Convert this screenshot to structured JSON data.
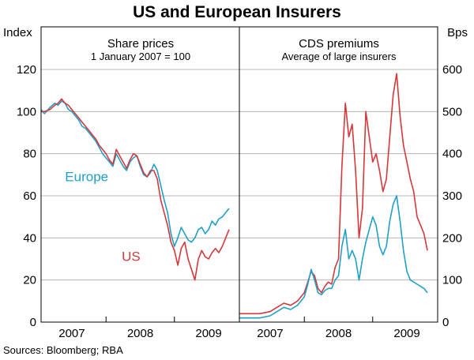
{
  "title": "US and European Insurers",
  "source": "Sources: Bloomberg; RBA",
  "colors": {
    "us": "#d6373a",
    "europe": "#1fa0c8",
    "grid": "#b5b5b5",
    "frame": "#000000"
  },
  "chart_data": [
    {
      "type": "line",
      "title": "Share prices",
      "subtitle": "1 January 2007 = 100",
      "ylabel": "Index",
      "ylim": [
        0,
        120
      ],
      "yticks": [
        0,
        20,
        40,
        60,
        80,
        100,
        120
      ],
      "xlim": [
        2006.55,
        2009.45
      ],
      "xticks": [
        {
          "label": "2007",
          "pos": 2007.0
        },
        {
          "label": "2008",
          "pos": 2008.0
        },
        {
          "label": "2009",
          "pos": 2009.0
        }
      ],
      "year_bounds": [
        2007.5,
        2008.5
      ],
      "annotations": [
        {
          "text": "Europe",
          "series": "Europe",
          "x": 2006.9,
          "y": 67
        },
        {
          "text": "US",
          "series": "US",
          "x": 2007.73,
          "y": 29
        }
      ],
      "series": [
        {
          "name": "Europe",
          "x": [
            2006.55,
            2006.6,
            2006.68,
            2006.75,
            2006.8,
            2006.85,
            2006.9,
            2006.95,
            2007.0,
            2007.05,
            2007.1,
            2007.15,
            2007.2,
            2007.25,
            2007.3,
            2007.35,
            2007.4,
            2007.45,
            2007.5,
            2007.55,
            2007.6,
            2007.65,
            2007.7,
            2007.75,
            2007.8,
            2007.85,
            2007.9,
            2007.95,
            2008.0,
            2008.05,
            2008.1,
            2008.15,
            2008.2,
            2008.25,
            2008.3,
            2008.35,
            2008.4,
            2008.45,
            2008.5,
            2008.55,
            2008.6,
            2008.65,
            2008.7,
            2008.75,
            2008.8,
            2008.85,
            2008.9,
            2008.95,
            2009.0,
            2009.05,
            2009.1,
            2009.15,
            2009.2,
            2009.25,
            2009.3
          ],
          "values": [
            101,
            99,
            102,
            104,
            103,
            105,
            104,
            101,
            100,
            98,
            96,
            93,
            92,
            90,
            88,
            86,
            83,
            80,
            78,
            76,
            74,
            80,
            77,
            74,
            72,
            76,
            78,
            79,
            74,
            70,
            69,
            71,
            75,
            72,
            65,
            58,
            52,
            42,
            36,
            40,
            45,
            42,
            39,
            38,
            40,
            44,
            45,
            42,
            44,
            48,
            46,
            49,
            50,
            52,
            54
          ]
        },
        {
          "name": "US",
          "x": [
            2006.55,
            2006.6,
            2006.68,
            2006.75,
            2006.8,
            2006.85,
            2006.9,
            2006.95,
            2007.0,
            2007.05,
            2007.1,
            2007.15,
            2007.2,
            2007.25,
            2007.3,
            2007.35,
            2007.4,
            2007.45,
            2007.5,
            2007.55,
            2007.6,
            2007.65,
            2007.7,
            2007.75,
            2007.8,
            2007.85,
            2007.9,
            2007.95,
            2008.0,
            2008.05,
            2008.1,
            2008.15,
            2008.2,
            2008.25,
            2008.3,
            2008.35,
            2008.4,
            2008.45,
            2008.5,
            2008.55,
            2008.6,
            2008.65,
            2008.7,
            2008.75,
            2008.8,
            2008.85,
            2008.9,
            2008.95,
            2009.0,
            2009.05,
            2009.1,
            2009.15,
            2009.2,
            2009.25,
            2009.3
          ],
          "values": [
            100,
            100,
            101,
            103,
            104,
            106,
            104,
            103,
            101,
            99,
            97,
            95,
            93,
            91,
            89,
            87,
            84,
            82,
            80,
            77,
            75,
            82,
            79,
            76,
            73,
            77,
            80,
            79,
            75,
            71,
            69,
            72,
            72,
            68,
            58,
            52,
            46,
            38,
            34,
            27,
            35,
            38,
            30,
            25,
            20,
            30,
            34,
            31,
            30,
            33,
            35,
            33,
            36,
            40,
            44
          ]
        }
      ]
    },
    {
      "type": "line",
      "title": "CDS premiums",
      "subtitle": "Average of large insurers",
      "ylabel": "Bps",
      "ylim": [
        0,
        600
      ],
      "yticks": [
        0,
        100,
        200,
        300,
        400,
        500,
        600
      ],
      "xlim": [
        2006.55,
        2009.45
      ],
      "xticks": [
        {
          "label": "2007",
          "pos": 2007.0
        },
        {
          "label": "2008",
          "pos": 2008.0
        },
        {
          "label": "2009",
          "pos": 2009.0
        }
      ],
      "year_bounds": [
        2007.5,
        2008.5
      ],
      "series": [
        {
          "name": "US",
          "x": [
            2006.55,
            2006.7,
            2006.85,
            2007.0,
            2007.1,
            2007.2,
            2007.3,
            2007.4,
            2007.5,
            2007.55,
            2007.6,
            2007.65,
            2007.7,
            2007.75,
            2007.8,
            2007.85,
            2007.9,
            2007.95,
            2008.0,
            2008.05,
            2008.1,
            2008.15,
            2008.2,
            2008.25,
            2008.3,
            2008.35,
            2008.4,
            2008.45,
            2008.5,
            2008.55,
            2008.6,
            2008.65,
            2008.7,
            2008.75,
            2008.8,
            2008.85,
            2008.9,
            2008.95,
            2009.0,
            2009.05,
            2009.1,
            2009.15,
            2009.2,
            2009.25,
            2009.3
          ],
          "values": [
            20,
            20,
            20,
            25,
            35,
            45,
            40,
            50,
            70,
            95,
            120,
            110,
            80,
            70,
            85,
            95,
            90,
            130,
            150,
            370,
            520,
            440,
            470,
            360,
            200,
            270,
            500,
            440,
            380,
            400,
            360,
            310,
            340,
            440,
            540,
            590,
            490,
            420,
            380,
            340,
            310,
            250,
            230,
            210,
            170
          ]
        },
        {
          "name": "Europe",
          "x": [
            2006.55,
            2006.7,
            2006.85,
            2007.0,
            2007.1,
            2007.2,
            2007.3,
            2007.4,
            2007.5,
            2007.55,
            2007.6,
            2007.65,
            2007.7,
            2007.75,
            2007.8,
            2007.85,
            2007.9,
            2007.95,
            2008.0,
            2008.05,
            2008.1,
            2008.15,
            2008.2,
            2008.25,
            2008.3,
            2008.35,
            2008.4,
            2008.45,
            2008.5,
            2008.55,
            2008.6,
            2008.65,
            2008.7,
            2008.75,
            2008.8,
            2008.85,
            2008.9,
            2008.95,
            2009.0,
            2009.05,
            2009.1,
            2009.15,
            2009.2,
            2009.25,
            2009.3
          ],
          "values": [
            10,
            10,
            10,
            15,
            25,
            35,
            30,
            40,
            60,
            90,
            125,
            100,
            70,
            65,
            75,
            80,
            80,
            100,
            110,
            180,
            220,
            150,
            170,
            150,
            100,
            150,
            190,
            220,
            250,
            230,
            180,
            160,
            180,
            240,
            280,
            300,
            240,
            170,
            120,
            100,
            95,
            90,
            85,
            80,
            70
          ]
        }
      ]
    }
  ]
}
